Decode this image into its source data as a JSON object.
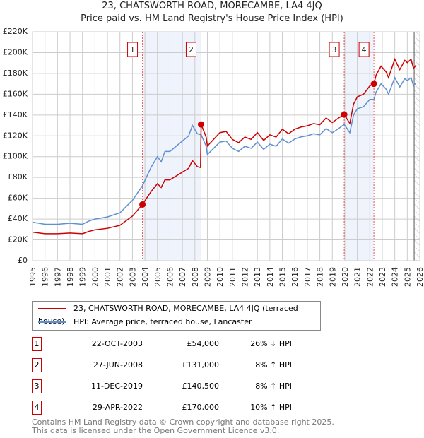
{
  "chart_data": {
    "type": "line",
    "title": "23, CHATSWORTH ROAD, MORECAMBE, LA4 4JQ",
    "subtitle": "Price paid vs. HM Land Registry's House Price Index (HPI)",
    "xlim": [
      1995,
      2026
    ],
    "ylim": [
      0,
      220000
    ],
    "y_ticks": [
      "£0",
      "£20K",
      "£40K",
      "£60K",
      "£80K",
      "£100K",
      "£120K",
      "£140K",
      "£160K",
      "£180K",
      "£200K",
      "£220K"
    ],
    "x_ticks": [
      "1995",
      "1996",
      "1997",
      "1998",
      "1999",
      "2000",
      "2001",
      "2002",
      "2003",
      "2004",
      "2005",
      "2006",
      "2007",
      "2008",
      "2009",
      "2010",
      "2011",
      "2012",
      "2013",
      "2014",
      "2015",
      "2016",
      "2017",
      "2018",
      "2019",
      "2020",
      "2021",
      "2022",
      "2023",
      "2024",
      "2025",
      "2026"
    ],
    "grid": true,
    "series": [
      {
        "name": "23, CHATSWORTH ROAD, MORECAMBE, LA4 4JQ (terraced house)",
        "color": "#cc0000",
        "points": [
          [
            1995,
            27.4
          ],
          [
            1996,
            25.9
          ],
          [
            1997,
            25.9
          ],
          [
            1998,
            26.6
          ],
          [
            1999,
            25.9
          ],
          [
            1999.5,
            28.1
          ],
          [
            2000,
            29.6
          ],
          [
            2001,
            31.1
          ],
          [
            2002,
            34
          ],
          [
            2003,
            42.9
          ],
          [
            2003.8,
            54
          ],
          [
            2004.5,
            66.6
          ],
          [
            2005,
            74
          ],
          [
            2005.3,
            70.3
          ],
          [
            2005.6,
            77.7
          ],
          [
            2006,
            77.7
          ],
          [
            2006.5,
            81.4
          ],
          [
            2007,
            85.1
          ],
          [
            2007.5,
            88.8
          ],
          [
            2007.8,
            96.2
          ],
          [
            2008.2,
            90.3
          ],
          [
            2008.45,
            89.5
          ],
          [
            2008.5,
            131
          ],
          [
            2008.9,
            118.8
          ],
          [
            2009,
            110.2
          ],
          [
            2009.5,
            116.6
          ],
          [
            2010,
            123.1
          ],
          [
            2010.5,
            124.2
          ],
          [
            2011,
            116.6
          ],
          [
            2011.5,
            113.4
          ],
          [
            2012,
            118.8
          ],
          [
            2012.5,
            116.6
          ],
          [
            2013,
            123.1
          ],
          [
            2013.5,
            115.6
          ],
          [
            2014,
            121
          ],
          [
            2014.5,
            118.8
          ],
          [
            2015,
            126.4
          ],
          [
            2015.5,
            122
          ],
          [
            2016,
            126.4
          ],
          [
            2016.5,
            128.5
          ],
          [
            2017,
            129.6
          ],
          [
            2017.5,
            131.8
          ],
          [
            2018,
            130.7
          ],
          [
            2018.5,
            137.2
          ],
          [
            2019,
            132.8
          ],
          [
            2019.5,
            137.2
          ],
          [
            2019.95,
            140.5
          ],
          [
            2020.4,
            132
          ],
          [
            2020.7,
            150.5
          ],
          [
            2021,
            157.5
          ],
          [
            2021.5,
            160
          ],
          [
            2022,
            168
          ],
          [
            2022.33,
            170
          ],
          [
            2022.5,
            178.2
          ],
          [
            2022.9,
            187
          ],
          [
            2023.3,
            181.5
          ],
          [
            2023.5,
            176
          ],
          [
            2024,
            193.6
          ],
          [
            2024.4,
            183.7
          ],
          [
            2024.8,
            192.5
          ],
          [
            2025,
            190.3
          ],
          [
            2025.3,
            193.6
          ],
          [
            2025.5,
            184.8
          ],
          [
            2025.7,
            188
          ]
        ]
      },
      {
        "name": "HPI: Average price, terraced house, Lancaster",
        "color": "#6090d0",
        "points": [
          [
            1995,
            37
          ],
          [
            1996,
            35
          ],
          [
            1997,
            35
          ],
          [
            1998,
            36
          ],
          [
            1999,
            35
          ],
          [
            1999.5,
            38
          ],
          [
            2000,
            40
          ],
          [
            2001,
            42
          ],
          [
            2002,
            46
          ],
          [
            2003,
            58
          ],
          [
            2003.8,
            72
          ],
          [
            2004.5,
            90
          ],
          [
            2005,
            100
          ],
          [
            2005.3,
            95
          ],
          [
            2005.6,
            105
          ],
          [
            2006,
            105
          ],
          [
            2006.5,
            110
          ],
          [
            2007,
            115
          ],
          [
            2007.5,
            120
          ],
          [
            2007.8,
            130
          ],
          [
            2008.2,
            122
          ],
          [
            2008.5,
            121
          ],
          [
            2008.9,
            110
          ],
          [
            2009,
            102
          ],
          [
            2009.5,
            108
          ],
          [
            2010,
            114
          ],
          [
            2010.5,
            115
          ],
          [
            2011,
            108
          ],
          [
            2011.5,
            105
          ],
          [
            2012,
            110
          ],
          [
            2012.5,
            108
          ],
          [
            2013,
            114
          ],
          [
            2013.5,
            107
          ],
          [
            2014,
            112
          ],
          [
            2014.5,
            110
          ],
          [
            2015,
            117
          ],
          [
            2015.5,
            113
          ],
          [
            2016,
            117
          ],
          [
            2016.5,
            119
          ],
          [
            2017,
            120
          ],
          [
            2017.5,
            122
          ],
          [
            2018,
            121
          ],
          [
            2018.5,
            127
          ],
          [
            2019,
            123
          ],
          [
            2019.5,
            127
          ],
          [
            2019.95,
            131
          ],
          [
            2020.4,
            123
          ],
          [
            2020.7,
            140
          ],
          [
            2021,
            146
          ],
          [
            2021.5,
            148
          ],
          [
            2022,
            155
          ],
          [
            2022.33,
            155
          ],
          [
            2022.5,
            162
          ],
          [
            2022.9,
            170
          ],
          [
            2023.3,
            165
          ],
          [
            2023.5,
            160
          ],
          [
            2024,
            176
          ],
          [
            2024.4,
            167
          ],
          [
            2024.8,
            175
          ],
          [
            2025,
            173
          ],
          [
            2025.3,
            176
          ],
          [
            2025.5,
            168
          ],
          [
            2025.7,
            171
          ]
        ]
      }
    ],
    "sales": [
      {
        "label": "1",
        "x": 2003.8,
        "y": 54
      },
      {
        "label": "2",
        "x": 2008.49,
        "y": 131
      },
      {
        "label": "3",
        "x": 2019.95,
        "y": 140.5
      },
      {
        "label": "4",
        "x": 2022.33,
        "y": 170
      }
    ],
    "shaded": [
      [
        2003.8,
        2008.49
      ],
      [
        2019.95,
        2022.33
      ]
    ],
    "forecast_from": 2025.55
  },
  "legend": {
    "property": "23, CHATSWORTH ROAD, MORECAMBE, LA4 4JQ (terraced house)",
    "hpi": "HPI: Average price, terraced house, Lancaster"
  },
  "transactions": [
    {
      "n": "1",
      "date": "22-OCT-2003",
      "price": "£54,000",
      "hpi": "26% ↓ HPI"
    },
    {
      "n": "2",
      "date": "27-JUN-2008",
      "price": "£131,000",
      "hpi": "8% ↑ HPI"
    },
    {
      "n": "3",
      "date": "11-DEC-2019",
      "price": "£140,500",
      "hpi": "8% ↑ HPI"
    },
    {
      "n": "4",
      "date": "29-APR-2022",
      "price": "£170,000",
      "hpi": "10% ↑ HPI"
    }
  ],
  "footer": [
    "Contains HM Land Registry data © Crown copyright and database right 2025.",
    "This data is licensed under the Open Government Licence v3.0."
  ]
}
